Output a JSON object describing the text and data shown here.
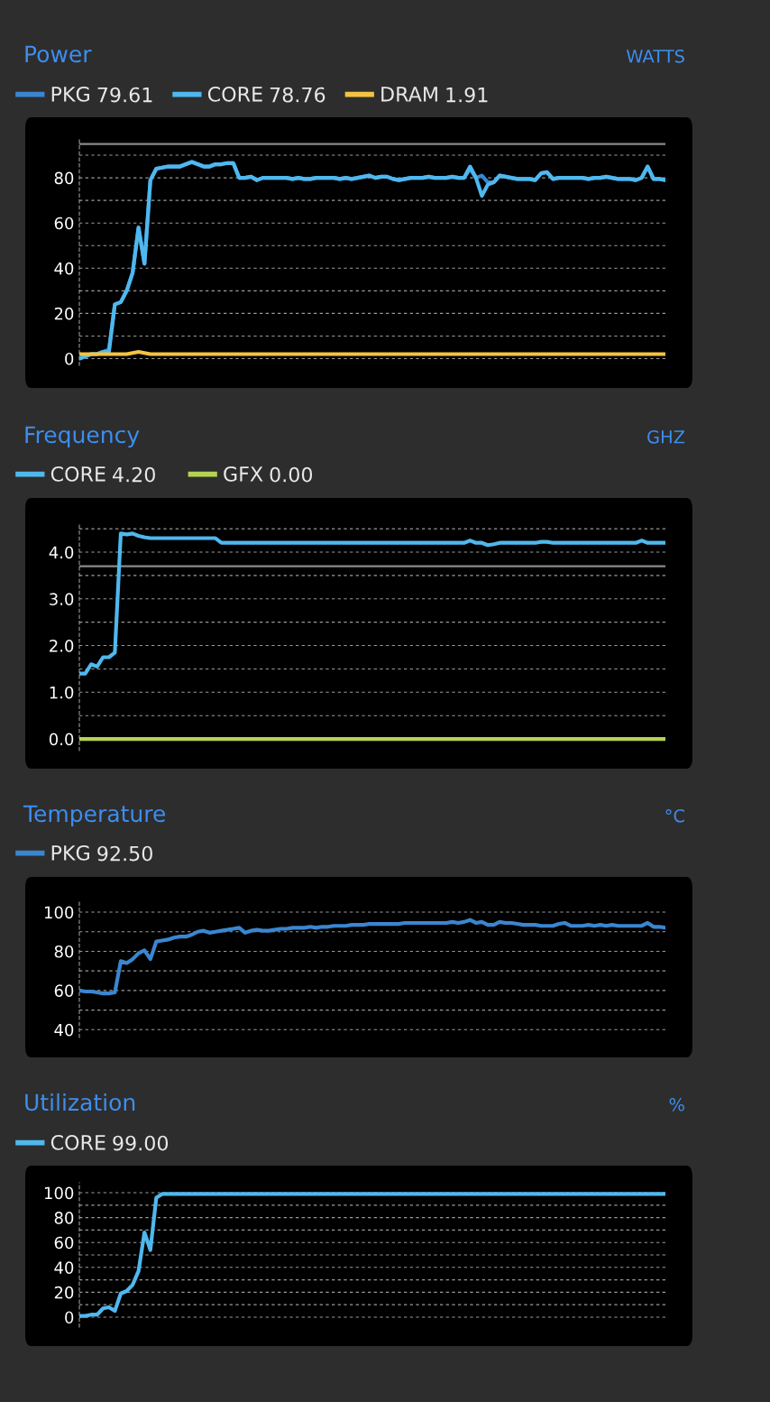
{
  "chart_data": [
    {
      "type": "line",
      "title": "Power",
      "ylabel": "WATTS",
      "categories": [
        null,
        null,
        null,
        null,
        null,
        null,
        null,
        null,
        null,
        null,
        null,
        null,
        null,
        null,
        null,
        null,
        null,
        null,
        null,
        null,
        null,
        null,
        null,
        null,
        null,
        null,
        null,
        null,
        null,
        null,
        null,
        null,
        null,
        null,
        null,
        null,
        null,
        null,
        null,
        null,
        null,
        null,
        null,
        null,
        null,
        null,
        null,
        null,
        null,
        null,
        null,
        null,
        null,
        null,
        null,
        null,
        null,
        null,
        null,
        null,
        null,
        null,
        null,
        null,
        null,
        null,
        null,
        null,
        null,
        null,
        null,
        null,
        null,
        null,
        null,
        null,
        null,
        null,
        null,
        null,
        null,
        null,
        null,
        null,
        null,
        null,
        null,
        null,
        null,
        null,
        null,
        null,
        null,
        null,
        null,
        null,
        null,
        null,
        null,
        null
      ],
      "annotations": [
        "79.61",
        "78.76",
        "1.91"
      ],
      "series": [
        {
          "name": "PKG",
          "color": "#3a86d0",
          "values": [
            0,
            1,
            2,
            2,
            3,
            4,
            24,
            25,
            30,
            38,
            58,
            42,
            79,
            84,
            84.5,
            85,
            85,
            85,
            86,
            87,
            86,
            85,
            85,
            86,
            86,
            86.5,
            86.5,
            80,
            80,
            80.5,
            79,
            80,
            80,
            80,
            80,
            80,
            79.5,
            80,
            79.5,
            79.5,
            80,
            80,
            80,
            80,
            79.5,
            80,
            79.5,
            80,
            80.5,
            81,
            80,
            80.5,
            80.5,
            79.5,
            79,
            79.5,
            80,
            80,
            80,
            80.5,
            80,
            80,
            80,
            80.5,
            80,
            80,
            84,
            80,
            81,
            78,
            78,
            81,
            80.5,
            80,
            79.5,
            79.5,
            79.5,
            79,
            82,
            82.5,
            79.5,
            80,
            80,
            80,
            80,
            80,
            79.5,
            80,
            80,
            80.5,
            80,
            79.5,
            79.5,
            79.5,
            79,
            80,
            85,
            79.5,
            79.5,
            79
          ]
        },
        {
          "name": "CORE",
          "color": "#4fb8ee",
          "values": [
            0,
            1,
            2,
            2,
            3,
            3,
            24,
            25,
            30,
            38,
            58,
            42,
            79,
            84,
            84.5,
            85,
            85,
            85,
            86,
            87,
            86,
            85,
            85,
            86,
            86,
            86.5,
            86.5,
            80,
            80,
            80.5,
            79,
            80,
            80,
            80,
            80,
            80,
            79.5,
            80,
            79.5,
            79.5,
            80,
            80,
            80,
            80,
            79.5,
            80,
            79.5,
            80,
            80.5,
            81,
            80,
            80.5,
            80.5,
            79.5,
            79,
            79.5,
            80,
            80,
            80,
            80.5,
            80,
            80,
            80,
            80.5,
            80,
            80,
            85,
            80,
            72,
            77,
            78,
            81,
            80.5,
            80,
            79.5,
            79.5,
            79.5,
            79,
            82,
            82.5,
            79.5,
            80,
            80,
            80,
            80,
            80,
            79.5,
            80,
            80,
            80.5,
            80,
            79.5,
            79.5,
            79.5,
            79,
            80,
            85,
            79.5,
            79.5,
            79
          ]
        },
        {
          "name": "DRAM",
          "color": "#f5c342",
          "values": [
            2,
            2,
            2,
            2,
            2,
            2,
            2,
            2,
            2,
            2.5,
            3,
            2.5,
            2,
            2,
            2,
            2,
            2,
            2,
            2,
            2,
            2,
            2,
            2,
            2,
            2,
            2,
            2,
            2,
            2,
            2,
            2,
            2,
            2,
            2,
            2,
            2,
            2,
            2,
            2,
            2,
            2,
            2,
            2,
            2,
            2,
            2,
            2,
            2,
            2,
            2,
            2,
            2,
            2,
            2,
            2,
            2,
            2,
            2,
            2,
            2,
            2,
            2,
            2,
            2,
            2,
            2,
            2,
            2,
            2,
            2,
            2,
            2,
            2,
            2,
            2,
            2,
            2,
            2,
            2,
            2,
            2,
            2,
            2,
            2,
            2,
            2,
            2,
            2,
            2,
            2,
            2,
            2,
            2,
            2,
            2,
            2,
            2,
            2,
            2,
            2
          ]
        }
      ],
      "ylim": [
        -3,
        98
      ],
      "yticks": [
        0,
        {
          "value": 10,
          "label": null
        },
        20,
        {
          "value": 30,
          "label": null
        },
        40,
        {
          "value": 50,
          "label": null
        },
        60,
        {
          "value": 70,
          "label": null
        },
        80,
        {
          "value": 90,
          "label": null
        }
      ],
      "ref_lines": [
        {
          "axis": "y",
          "value": 95,
          "color": "#8a8a8a"
        }
      ],
      "grid": "y",
      "legend": "top left",
      "tick_labels": "y"
    },
    {
      "type": "line",
      "title": "Frequency",
      "ylabel": "GHZ",
      "categories": [
        null,
        null,
        null,
        null,
        null,
        null,
        null,
        null,
        null,
        null,
        null,
        null,
        null,
        null,
        null,
        null,
        null,
        null,
        null,
        null,
        null,
        null,
        null,
        null,
        null,
        null,
        null,
        null,
        null,
        null,
        null,
        null,
        null,
        null,
        null,
        null,
        null,
        null,
        null,
        null,
        null,
        null,
        null,
        null,
        null,
        null,
        null,
        null,
        null,
        null,
        null,
        null,
        null,
        null,
        null,
        null,
        null,
        null,
        null,
        null,
        null,
        null,
        null,
        null,
        null,
        null,
        null,
        null,
        null,
        null,
        null,
        null,
        null,
        null,
        null,
        null,
        null,
        null,
        null,
        null,
        null,
        null,
        null,
        null,
        null,
        null,
        null,
        null,
        null,
        null,
        null,
        null,
        null,
        null,
        null,
        null,
        null,
        null,
        null,
        null
      ],
      "annotations": [
        "4.20",
        "0.00"
      ],
      "series": [
        {
          "name": "CORE",
          "color": "#4fb8ee",
          "values": [
            1.4,
            1.4,
            1.6,
            1.55,
            1.75,
            1.75,
            1.85,
            4.4,
            4.38,
            4.4,
            4.35,
            4.32,
            4.3,
            4.3,
            4.3,
            4.3,
            4.3,
            4.3,
            4.3,
            4.3,
            4.3,
            4.3,
            4.3,
            4.3,
            4.2,
            4.2,
            4.2,
            4.2,
            4.2,
            4.2,
            4.2,
            4.2,
            4.2,
            4.2,
            4.2,
            4.2,
            4.2,
            4.2,
            4.2,
            4.2,
            4.2,
            4.2,
            4.2,
            4.2,
            4.2,
            4.2,
            4.2,
            4.2,
            4.2,
            4.2,
            4.2,
            4.2,
            4.2,
            4.2,
            4.2,
            4.2,
            4.2,
            4.2,
            4.2,
            4.2,
            4.2,
            4.2,
            4.2,
            4.2,
            4.2,
            4.2,
            4.25,
            4.2,
            4.2,
            4.15,
            4.17,
            4.2,
            4.2,
            4.2,
            4.2,
            4.2,
            4.2,
            4.2,
            4.22,
            4.22,
            4.2,
            4.2,
            4.2,
            4.2,
            4.2,
            4.2,
            4.2,
            4.2,
            4.2,
            4.2,
            4.2,
            4.2,
            4.2,
            4.2,
            4.2,
            4.25,
            4.2,
            4.2,
            4.2,
            4.2
          ]
        },
        {
          "name": "GFX",
          "color": "#b5d252",
          "values": [
            0,
            0,
            0,
            0,
            0,
            0,
            0,
            0,
            0,
            0,
            0,
            0,
            0,
            0,
            0,
            0,
            0,
            0,
            0,
            0,
            0,
            0,
            0,
            0,
            0,
            0,
            0,
            0,
            0,
            0,
            0,
            0,
            0,
            0,
            0,
            0,
            0,
            0,
            0,
            0,
            0,
            0,
            0,
            0,
            0,
            0,
            0,
            0,
            0,
            0,
            0,
            0,
            0,
            0,
            0,
            0,
            0,
            0,
            0,
            0,
            0,
            0,
            0,
            0,
            0,
            0,
            0,
            0,
            0,
            0,
            0,
            0,
            0,
            0,
            0,
            0,
            0,
            0,
            0,
            0,
            0,
            0,
            0,
            0,
            0,
            0,
            0,
            0,
            0,
            0,
            0,
            0,
            0,
            0,
            0,
            0,
            0,
            0,
            0,
            0
          ]
        }
      ],
      "ylim": [
        -0.25,
        4.6
      ],
      "yticks": [
        {
          "value": 0,
          "label": "0.0"
        },
        {
          "value": 0.5,
          "label": null
        },
        {
          "value": 1,
          "label": "1.0"
        },
        {
          "value": 1.5,
          "label": null
        },
        {
          "value": 2,
          "label": "2.0"
        },
        {
          "value": 2.5,
          "label": null
        },
        {
          "value": 3,
          "label": "3.0"
        },
        {
          "value": 3.5,
          "label": null
        },
        {
          "value": 4,
          "label": "4.0"
        },
        {
          "value": 4.5,
          "label": null
        }
      ],
      "ref_lines": [
        {
          "axis": "y",
          "value": 3.7,
          "color": "#8a8a8a"
        }
      ],
      "grid": "y",
      "legend": "top left",
      "tick_labels": "y"
    },
    {
      "type": "line",
      "title": "Temperature",
      "ylabel": "°C",
      "categories": [
        null,
        null,
        null,
        null,
        null,
        null,
        null,
        null,
        null,
        null,
        null,
        null,
        null,
        null,
        null,
        null,
        null,
        null,
        null,
        null,
        null,
        null,
        null,
        null,
        null,
        null,
        null,
        null,
        null,
        null,
        null,
        null,
        null,
        null,
        null,
        null,
        null,
        null,
        null,
        null,
        null,
        null,
        null,
        null,
        null,
        null,
        null,
        null,
        null,
        null,
        null,
        null,
        null,
        null,
        null,
        null,
        null,
        null,
        null,
        null,
        null,
        null,
        null,
        null,
        null,
        null,
        null,
        null,
        null,
        null,
        null,
        null,
        null,
        null,
        null,
        null,
        null,
        null,
        null,
        null,
        null,
        null,
        null,
        null,
        null,
        null,
        null,
        null,
        null,
        null,
        null,
        null,
        null,
        null,
        null,
        null,
        null,
        null,
        null,
        null
      ],
      "annotations": [
        "92.50"
      ],
      "series": [
        {
          "name": "PKG",
          "color": "#3a86d0",
          "values": [
            60,
            59.5,
            59.5,
            59,
            58.5,
            58.5,
            59,
            75,
            74,
            76,
            79,
            80.5,
            76,
            85,
            85.5,
            86,
            87,
            87.5,
            87.5,
            88.5,
            90,
            90.5,
            89.5,
            90,
            90.5,
            91,
            91.5,
            92,
            89.5,
            90.5,
            91,
            90.5,
            90.5,
            91,
            91.5,
            91.5,
            92,
            92,
            92,
            92.5,
            92,
            92.5,
            92.5,
            93,
            93,
            93,
            93.5,
            93.5,
            93.5,
            94,
            94,
            94,
            94,
            94,
            94,
            94.5,
            94.5,
            94.5,
            94.5,
            94.5,
            94.5,
            94.5,
            94.5,
            95,
            94.5,
            95,
            96,
            94.5,
            95,
            93.5,
            93.5,
            95,
            94.5,
            94.5,
            94,
            93.5,
            93.5,
            93.5,
            93,
            93,
            93,
            94,
            94.5,
            93,
            93,
            93,
            93.5,
            93,
            93.5,
            93,
            93.5,
            93,
            93,
            93,
            93,
            93,
            94.5,
            92.5,
            92.5,
            92
          ]
        }
      ],
      "ylim": [
        36,
        106
      ],
      "yticks": [
        40,
        {
          "value": 50,
          "label": null
        },
        60,
        {
          "value": 70,
          "label": null
        },
        80,
        {
          "value": 90,
          "label": null
        },
        100
      ],
      "grid": "y",
      "legend": "top left",
      "tick_labels": "y"
    },
    {
      "type": "line",
      "title": "Utilization",
      "ylabel": "%",
      "categories": [
        null,
        null,
        null,
        null,
        null,
        null,
        null,
        null,
        null,
        null,
        null,
        null,
        null,
        null,
        null,
        null,
        null,
        null,
        null,
        null,
        null,
        null,
        null,
        null,
        null,
        null,
        null,
        null,
        null,
        null,
        null,
        null,
        null,
        null,
        null,
        null,
        null,
        null,
        null,
        null,
        null,
        null,
        null,
        null,
        null,
        null,
        null,
        null,
        null,
        null,
        null,
        null,
        null,
        null,
        null,
        null,
        null,
        null,
        null,
        null,
        null,
        null,
        null,
        null,
        null,
        null,
        null,
        null,
        null,
        null,
        null,
        null,
        null,
        null,
        null,
        null,
        null,
        null,
        null,
        null,
        null,
        null,
        null,
        null,
        null,
        null,
        null,
        null,
        null,
        null,
        null,
        null,
        null,
        null,
        null,
        null,
        null,
        null,
        null,
        null
      ],
      "annotations": [
        "99.00"
      ],
      "series": [
        {
          "name": "CORE",
          "color": "#4fb8ee",
          "values": [
            1,
            1,
            2,
            2,
            7,
            8,
            5,
            19,
            21,
            26,
            37,
            68,
            54,
            96,
            99,
            99,
            99,
            99,
            99,
            99,
            99,
            99,
            99,
            99,
            99,
            99,
            99,
            99,
            99,
            99,
            99,
            99,
            99,
            99,
            99,
            99,
            99,
            99,
            99,
            99,
            99,
            99,
            99,
            99,
            99,
            99,
            99,
            99,
            99,
            99,
            99,
            99,
            99,
            99,
            99,
            99,
            99,
            99,
            99,
            99,
            99,
            99,
            99,
            99,
            99,
            99,
            99,
            99,
            99,
            99,
            99,
            99,
            99,
            99,
            99,
            99,
            99,
            99,
            99,
            99,
            99,
            99,
            99,
            99,
            99,
            99,
            99,
            99,
            99,
            99,
            99,
            99,
            99,
            99,
            99,
            99,
            99,
            99,
            99,
            99
          ]
        }
      ],
      "ylim": [
        -8,
        108
      ],
      "yticks": [
        0,
        {
          "value": 10,
          "label": null
        },
        20,
        {
          "value": 30,
          "label": null
        },
        40,
        {
          "value": 50,
          "label": null
        },
        60,
        {
          "value": 70,
          "label": null
        },
        80,
        {
          "value": 90,
          "label": null
        },
        100
      ],
      "grid": "y",
      "legend": "top left",
      "tick_labels": "y"
    }
  ]
}
